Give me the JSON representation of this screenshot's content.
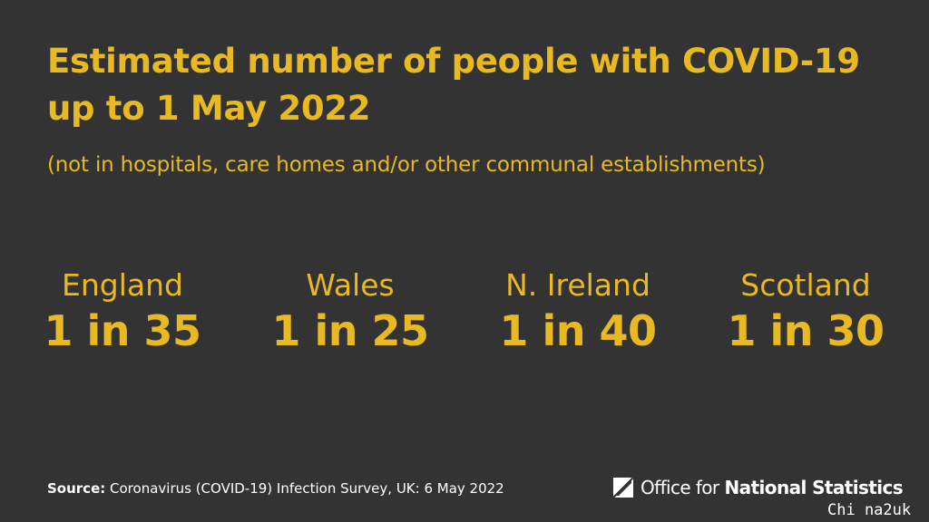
{
  "title": "Estimated number of people with COVID-19 up to 1 May 2022",
  "subtitle": "(not in hospitals, care homes and/or other communal establishments)",
  "stats": [
    {
      "region": "England",
      "ratio": "1 in 35"
    },
    {
      "region": "Wales",
      "ratio": "1 in 25"
    },
    {
      "region": "N. Ireland",
      "ratio": "1 in 40"
    },
    {
      "region": "Scotland",
      "ratio": "1 in 30"
    }
  ],
  "source": {
    "label": "Source:",
    "text": "Coronavirus (COVID-19) Infection Survey, UK: 6 May 2022"
  },
  "logo": {
    "office": "Office for",
    "national_statistics": "National Statistics",
    "icon": "ons-logo-icon"
  },
  "watermark": "Chi na2uk",
  "colors": {
    "background": "#333333",
    "accent": "#e8b923",
    "text": "#ffffff"
  }
}
